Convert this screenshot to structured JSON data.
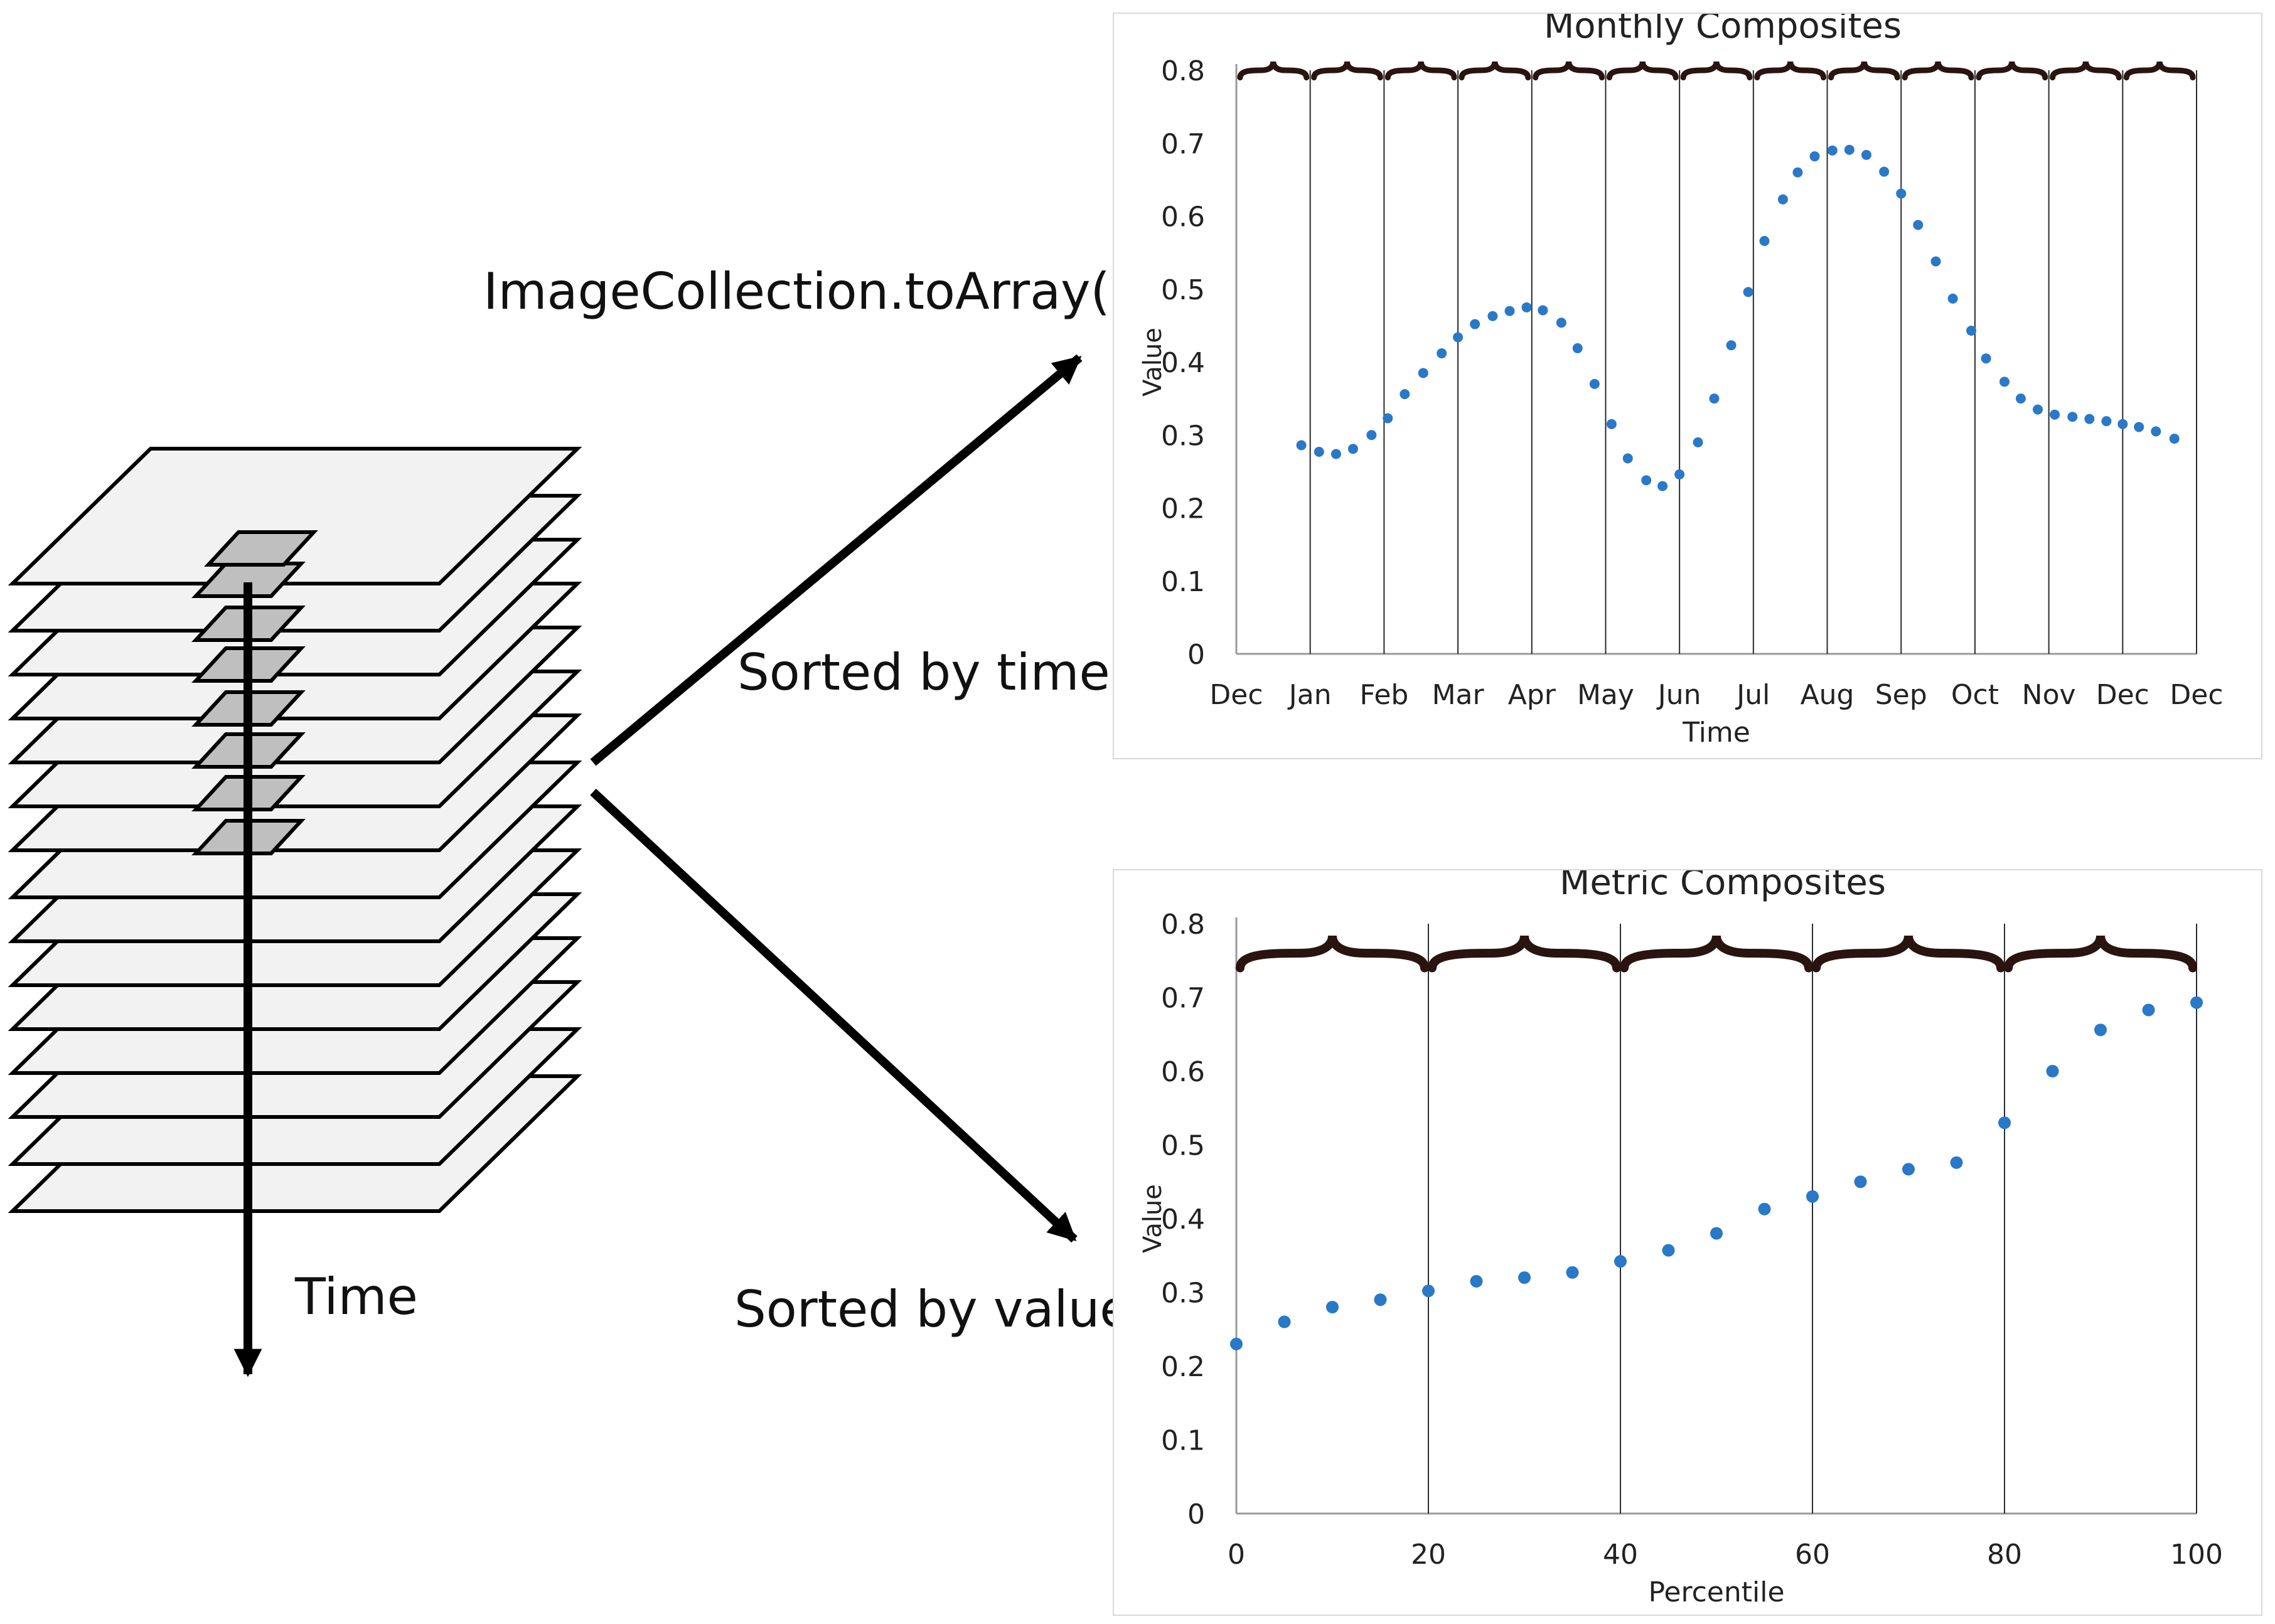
{
  "labels": {
    "api_call": "ImageCollection.toArray()",
    "sorted_by_time": "Sorted by time",
    "sorted_by_value": "Sorted by value",
    "time_axis": "Time"
  },
  "colors": {
    "points": "#2a78c8",
    "brace": "#2a1410",
    "layer_fill": "#f2f2f2",
    "pixel_fill": "#bfbfbf"
  },
  "chart_data": [
    {
      "type": "scatter",
      "title": "Monthly Composites",
      "xlabel": "Time",
      "ylabel": "Value",
      "ylim": [
        0,
        0.8
      ],
      "yticks": [
        "0",
        "0.1",
        "0.2",
        "0.3",
        "0.4",
        "0.5",
        "0.6",
        "0.7",
        "0.8"
      ],
      "xlim": [
        0,
        13
      ],
      "xticks": [
        "Dec",
        "Jan",
        "Feb",
        "Mar",
        "Apr",
        "May",
        "Jun",
        "Jul",
        "Aug",
        "Sep",
        "Oct",
        "Nov",
        "Dec",
        "Dec"
      ],
      "dividers": [
        1,
        2,
        3,
        4,
        5,
        6,
        7,
        8,
        9,
        10,
        11,
        12,
        13
      ],
      "braces": [
        [
          0,
          1
        ],
        [
          1,
          2
        ],
        [
          2,
          3
        ],
        [
          3,
          4
        ],
        [
          4,
          5
        ],
        [
          5,
          6
        ],
        [
          6,
          7
        ],
        [
          7,
          8
        ],
        [
          8,
          9
        ],
        [
          9,
          10
        ],
        [
          10,
          11
        ],
        [
          11,
          12
        ],
        [
          12,
          13
        ]
      ],
      "x": [
        0.88,
        1.12,
        1.35,
        1.58,
        1.83,
        2.05,
        2.28,
        2.53,
        2.78,
        3.0,
        3.23,
        3.47,
        3.7,
        3.93,
        4.15,
        4.4,
        4.62,
        4.85,
        5.08,
        5.3,
        5.55,
        5.77,
        6.0,
        6.25,
        6.47,
        6.7,
        6.93,
        7.15,
        7.4,
        7.6,
        7.83,
        8.07,
        8.3,
        8.53,
        8.77,
        9.0,
        9.23,
        9.47,
        9.7,
        9.95,
        10.15,
        10.4,
        10.62,
        10.85,
        11.08,
        11.32,
        11.55,
        11.78,
        12.0,
        12.22,
        12.45,
        12.7
      ],
      "y": [
        0.286,
        0.277,
        0.274,
        0.281,
        0.3,
        0.323,
        0.356,
        0.385,
        0.412,
        0.434,
        0.452,
        0.463,
        0.47,
        0.475,
        0.471,
        0.454,
        0.419,
        0.37,
        0.315,
        0.268,
        0.238,
        0.23,
        0.246,
        0.29,
        0.35,
        0.423,
        0.496,
        0.566,
        0.623,
        0.66,
        0.682,
        0.69,
        0.691,
        0.684,
        0.661,
        0.631,
        0.588,
        0.538,
        0.487,
        0.443,
        0.405,
        0.373,
        0.35,
        0.335,
        0.328,
        0.325,
        0.322,
        0.319,
        0.315,
        0.311,
        0.305,
        0.295
      ]
    },
    {
      "type": "scatter",
      "title": "Metric Composites",
      "xlabel": "Percentile",
      "ylabel": "Value",
      "ylim": [
        0,
        0.8
      ],
      "yticks": [
        "0",
        "0.1",
        "0.2",
        "0.3",
        "0.4",
        "0.5",
        "0.6",
        "0.7",
        "0.8"
      ],
      "xlim": [
        0,
        100
      ],
      "xticks": [
        "0",
        "20",
        "40",
        "60",
        "80",
        "100"
      ],
      "dividers": [
        20,
        40,
        60,
        80,
        100
      ],
      "braces": [
        [
          0,
          20
        ],
        [
          20,
          40
        ],
        [
          40,
          60
        ],
        [
          60,
          80
        ],
        [
          80,
          100
        ]
      ],
      "x": [
        0,
        5,
        10,
        15,
        20,
        25,
        30,
        35,
        40,
        45,
        50,
        55,
        60,
        65,
        70,
        75,
        80,
        85,
        90,
        95,
        100
      ],
      "y": [
        0.23,
        0.26,
        0.28,
        0.29,
        0.302,
        0.315,
        0.32,
        0.327,
        0.342,
        0.357,
        0.38,
        0.413,
        0.43,
        0.45,
        0.467,
        0.476,
        0.53,
        0.6,
        0.656,
        0.683,
        0.693
      ]
    }
  ]
}
